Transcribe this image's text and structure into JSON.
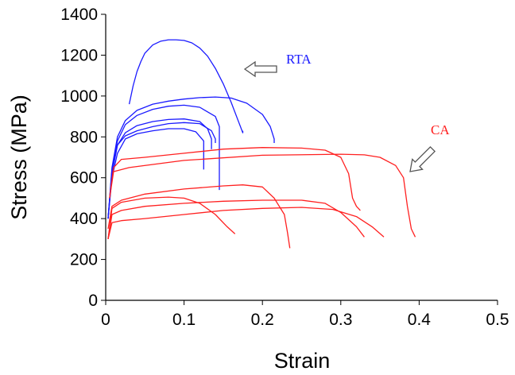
{
  "chart_data": {
    "type": "line",
    "title": "",
    "xlabel": "Strain",
    "ylabel": "Stress (MPa)",
    "xlim": [
      0,
      0.5
    ],
    "ylim": [
      0,
      1400
    ],
    "xticks": [
      "0",
      "0.1",
      "0.2",
      "0.3",
      "0.4",
      "0.5"
    ],
    "yticks": [
      "0",
      "200",
      "400",
      "600",
      "800",
      "1000",
      "1200",
      "1400"
    ],
    "grid": false,
    "legend": "none",
    "colors": {
      "RTA": "#1a1aff",
      "CA": "#ff2020"
    },
    "annotations": [
      {
        "text": "RTA",
        "group": "RTA",
        "arrow_points_to": "RTA curves"
      },
      {
        "text": "CA",
        "group": "CA",
        "arrow_points_to": "CA curves"
      }
    ],
    "groups": [
      {
        "group": "RTA",
        "series": [
          {
            "x": [
              0.03,
              0.035,
              0.04,
              0.045,
              0.05,
              0.06,
              0.07,
              0.08,
              0.09,
              0.1,
              0.11,
              0.12,
              0.13,
              0.14,
              0.15,
              0.16,
              0.17,
              0.175,
              0.175
            ],
            "y": [
              960,
              1050,
              1120,
              1170,
              1210,
              1250,
              1268,
              1275,
              1275,
              1272,
              1260,
              1235,
              1195,
              1135,
              1060,
              970,
              870,
              820,
              830
            ]
          },
          {
            "x": [
              0.003,
              0.008,
              0.015,
              0.025,
              0.04,
              0.06,
              0.08,
              0.1,
              0.12,
              0.14,
              0.16,
              0.18,
              0.2,
              0.21,
              0.215,
              0.215
            ],
            "y": [
              400,
              650,
              800,
              880,
              930,
              960,
              975,
              985,
              992,
              995,
              990,
              965,
              910,
              850,
              790,
              770
            ]
          },
          {
            "x": [
              0.003,
              0.008,
              0.015,
              0.025,
              0.04,
              0.06,
              0.08,
              0.1,
              0.12,
              0.14,
              0.145,
              0.145
            ],
            "y": [
              400,
              640,
              780,
              860,
              905,
              935,
              950,
              955,
              945,
              900,
              850,
              540
            ]
          },
          {
            "x": [
              0.003,
              0.008,
              0.015,
              0.025,
              0.04,
              0.06,
              0.08,
              0.1,
              0.12,
              0.13,
              0.135,
              0.135
            ],
            "y": [
              400,
              620,
              760,
              820,
              855,
              875,
              885,
              888,
              875,
              840,
              790,
              740
            ]
          },
          {
            "x": [
              0.003,
              0.008,
              0.015,
              0.025,
              0.04,
              0.06,
              0.08,
              0.1,
              0.12,
              0.135,
              0.14,
              0.14
            ],
            "y": [
              400,
              630,
              760,
              805,
              830,
              850,
              865,
              870,
              865,
              830,
              790,
              770
            ]
          },
          {
            "x": [
              0.003,
              0.008,
              0.015,
              0.025,
              0.04,
              0.06,
              0.08,
              0.1,
              0.115,
              0.125,
              0.125
            ],
            "y": [
              400,
              600,
              720,
              790,
              815,
              830,
              840,
              840,
              825,
              780,
              640
            ]
          }
        ]
      },
      {
        "group": "CA",
        "series": [
          {
            "x": [
              0.005,
              0.01,
              0.02,
              0.05,
              0.1,
              0.15,
              0.2,
              0.25,
              0.28,
              0.3,
              0.31,
              0.315,
              0.32,
              0.325
            ],
            "y": [
              500,
              650,
              690,
              700,
              720,
              740,
              748,
              745,
              735,
              700,
              620,
              500,
              460,
              440
            ]
          },
          {
            "x": [
              0.005,
              0.01,
              0.015,
              0.03,
              0.1,
              0.2,
              0.3,
              0.33,
              0.35,
              0.37,
              0.38,
              0.385,
              0.39,
              0.395
            ],
            "y": [
              500,
              630,
              635,
              650,
              685,
              710,
              715,
              712,
              700,
              660,
              600,
              460,
              350,
              310
            ]
          },
          {
            "x": [
              0.003,
              0.008,
              0.02,
              0.05,
              0.1,
              0.15,
              0.175,
              0.2,
              0.215,
              0.228,
              0.232,
              0.235
            ],
            "y": [
              350,
              460,
              490,
              520,
              545,
              560,
              565,
              555,
              500,
              420,
              330,
              255
            ]
          },
          {
            "x": [
              0.003,
              0.008,
              0.02,
              0.05,
              0.08,
              0.1,
              0.12,
              0.14,
              0.155,
              0.165
            ],
            "y": [
              300,
              450,
              480,
              500,
              505,
              500,
              475,
              420,
              360,
              325
            ]
          },
          {
            "x": [
              0.003,
              0.008,
              0.02,
              0.05,
              0.1,
              0.15,
              0.2,
              0.25,
              0.28,
              0.3,
              0.32,
              0.33
            ],
            "y": [
              300,
              420,
              440,
              460,
              475,
              485,
              490,
              490,
              475,
              430,
              360,
              310
            ]
          },
          {
            "x": [
              0.003,
              0.008,
              0.02,
              0.05,
              0.1,
              0.15,
              0.2,
              0.25,
              0.29,
              0.32,
              0.34,
              0.355
            ],
            "y": [
              300,
              380,
              390,
              400,
              420,
              440,
              450,
              455,
              445,
              410,
              360,
              310
            ]
          }
        ]
      }
    ]
  }
}
